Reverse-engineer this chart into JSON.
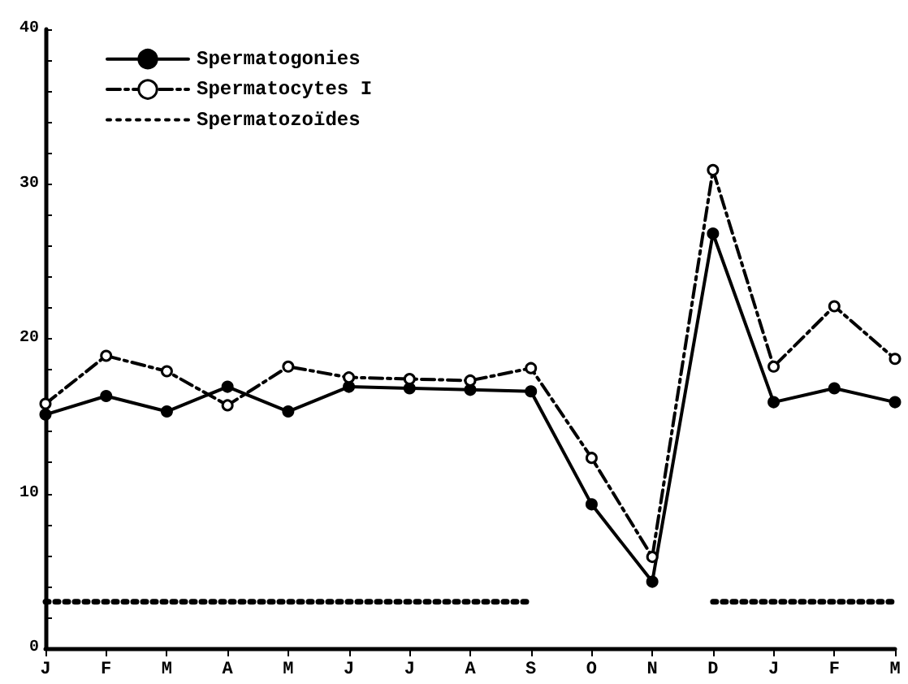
{
  "chart_data": {
    "type": "line",
    "categories": [
      "J",
      "F",
      "M",
      "A",
      "M",
      "J",
      "J",
      "A",
      "S",
      "O",
      "N",
      "D",
      "J",
      "F",
      "M"
    ],
    "series": [
      {
        "name": "Spermatogonies",
        "color": "#000000",
        "marker": "circle",
        "line_style": "solid",
        "values": [
          15.1,
          16.3,
          15.3,
          16.9,
          15.3,
          16.9,
          16.8,
          16.7,
          16.6,
          9.3,
          4.3,
          26.8,
          15.9,
          16.8,
          15.9
        ]
      },
      {
        "name": "Spermatocytes I",
        "color": "#000000",
        "marker": "open-circle",
        "line_style": "dashed",
        "values": [
          15.8,
          18.9,
          17.9,
          15.7,
          18.2,
          17.5,
          17.4,
          17.3,
          18.1,
          12.3,
          5.9,
          30.9,
          18.2,
          22.1,
          18.7
        ]
      },
      {
        "name": "Spermatozoïdes",
        "color": "#000000",
        "marker": "none",
        "line_style": "dotted",
        "values": [
          3,
          3,
          3,
          3,
          3,
          3,
          3,
          3,
          3,
          null,
          null,
          3,
          3,
          3,
          3
        ]
      }
    ],
    "ylim": [
      0,
      40
    ],
    "yticks": [
      0,
      {
        "value": 2,
        "label": null
      },
      {
        "value": 4,
        "label": null
      },
      {
        "value": 6,
        "label": null
      },
      {
        "value": 8,
        "label": null
      },
      10,
      {
        "value": 12,
        "label": null
      },
      {
        "value": 14,
        "label": null
      },
      {
        "value": 16,
        "label": null
      },
      {
        "value": 18,
        "label": null
      },
      20,
      {
        "value": 22,
        "label": null
      },
      {
        "value": 24,
        "label": null
      },
      {
        "value": 26,
        "label": null
      },
      {
        "value": 28,
        "label": null
      },
      30,
      {
        "value": 32,
        "label": null
      },
      {
        "value": 34,
        "label": null
      },
      {
        "value": 36,
        "label": null
      },
      {
        "value": 38,
        "label": null
      },
      40
    ],
    "grid": false,
    "legend": "top left"
  }
}
